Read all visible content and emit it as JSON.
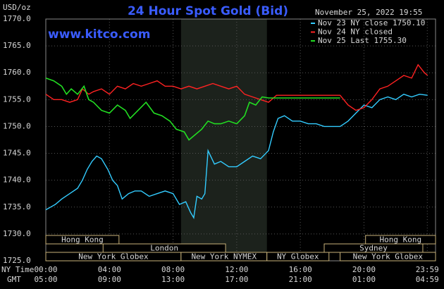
{
  "chart_data": {
    "type": "line",
    "title": "24 Hour Spot Gold (Bid)",
    "watermark": "www.kitco.com",
    "y_unit": "USD/oz",
    "timestamp": "November 25, 2022 19:55",
    "xlabel_rows": [
      "NY Time",
      "GMT"
    ],
    "xlim": [
      0,
      24.5
    ],
    "xticks": [
      {
        "value": 0,
        "label": "00:00"
      },
      {
        "value": 4,
        "label": "04:00"
      },
      {
        "value": 8,
        "label": "08:00"
      },
      {
        "value": 12,
        "label": "12:00"
      },
      {
        "value": 16,
        "label": "16:00"
      },
      {
        "value": 20,
        "label": "20:00"
      },
      {
        "value": 23.98,
        "label": "23:59"
      }
    ],
    "xticks_gmt": [
      "05:00",
      "09:00",
      "13:00",
      "17:00",
      "21:00",
      "01:00",
      "04:59"
    ],
    "ylim": [
      1725,
      1770
    ],
    "yticks": [
      {
        "value": 1725,
        "label": "1725.0"
      },
      {
        "value": 1730,
        "label": "1730.0"
      },
      {
        "value": 1735,
        "label": "1735.0"
      },
      {
        "value": 1740,
        "label": "1740.0"
      },
      {
        "value": 1745,
        "label": "1745.0"
      },
      {
        "value": 1750,
        "label": "1750.0"
      },
      {
        "value": 1755,
        "label": "1755.0"
      },
      {
        "value": 1760,
        "label": "1760.0"
      },
      {
        "value": 1765,
        "label": "1765.0"
      },
      {
        "value": 1770,
        "label": "1770.0"
      }
    ],
    "grid": true,
    "highlight": [
      8.5,
      13.9
    ],
    "sessions": [
      {
        "label": "Hong Kong",
        "start": 0,
        "end": 4.6,
        "row": 0
      },
      {
        "label": "London",
        "start": 3.6,
        "end": 11.3,
        "row": 1
      },
      {
        "label": "New York Globex",
        "start": 0,
        "end": 8.5,
        "row": 2
      },
      {
        "label": "New York NYMEX",
        "start": 8.5,
        "end": 13.9,
        "row": 2
      },
      {
        "label": "NY Globex",
        "start": 13.9,
        "end": 17.8,
        "row": 2
      },
      {
        "label": "Sydney",
        "start": 17.5,
        "end": 23.7,
        "row": 1
      },
      {
        "label": "Hong Kong",
        "start": 20.1,
        "end": 24.5,
        "row": 0
      },
      {
        "label": "New York Globex",
        "start": 18.5,
        "end": 24.5,
        "row": 2
      }
    ],
    "series": [
      {
        "name": "Nov 23 NY close 1750.10",
        "color": "#33ccff",
        "x": [
          0,
          0.3,
          0.6,
          1,
          1.5,
          2,
          2.3,
          2.6,
          2.9,
          3.2,
          3.5,
          3.9,
          4.2,
          4.5,
          4.8,
          5.2,
          5.6,
          6,
          6.5,
          7,
          7.5,
          8,
          8.4,
          8.8,
          9.1,
          9.3,
          9.5,
          9.8,
          10,
          10.2,
          10.6,
          11,
          11.5,
          12,
          12.5,
          13,
          13.5,
          14,
          14.3,
          14.6,
          15,
          15.5,
          16,
          16.5,
          17,
          17.5,
          18.5,
          19,
          19.5,
          20,
          20.5,
          21,
          21.5,
          22,
          22.5,
          23,
          23.5,
          24
        ],
        "values": [
          1734.5,
          1735,
          1735.5,
          1736.5,
          1737.5,
          1738.5,
          1740,
          1742,
          1743.5,
          1744.5,
          1744,
          1742,
          1740,
          1739,
          1736.5,
          1737.5,
          1738,
          1738,
          1737,
          1737.5,
          1738,
          1737.5,
          1735.5,
          1736,
          1734,
          1733,
          1737,
          1736.5,
          1737.5,
          1745.5,
          1743,
          1743.5,
          1742.5,
          1742.5,
          1743.5,
          1744.5,
          1744,
          1745.5,
          1749,
          1751.5,
          1752,
          1751,
          1751,
          1750.5,
          1750.5,
          1750,
          1750,
          1751,
          1752.5,
          1754,
          1753.5,
          1755,
          1755.5,
          1755,
          1756,
          1755.5,
          1756,
          1755.8
        ]
      },
      {
        "name": "Nov 24 NY closed",
        "color": "#ff2222",
        "x": [
          0,
          0.5,
          1,
          1.5,
          2,
          2.3,
          2.7,
          3,
          3.5,
          4,
          4.5,
          5,
          5.5,
          6,
          6.5,
          7,
          7.5,
          8,
          8.5,
          9,
          9.5,
          10,
          10.5,
          11,
          11.5,
          12,
          12.5,
          13,
          13.5,
          14,
          14.5,
          18.5,
          19,
          19.5,
          20,
          20.5,
          21,
          21.5,
          22,
          22.5,
          23,
          23.4,
          23.8,
          24
        ],
        "values": [
          1756,
          1755,
          1755,
          1754.5,
          1755,
          1757,
          1756,
          1756.5,
          1757,
          1756,
          1757.5,
          1757,
          1758,
          1757.5,
          1758,
          1758.5,
          1757.5,
          1757.5,
          1757,
          1757.5,
          1757,
          1757.5,
          1758,
          1757.5,
          1757,
          1757.5,
          1756,
          1755.5,
          1755,
          1754.5,
          1755.8,
          1755.8,
          1754,
          1753,
          1753.5,
          1755,
          1757,
          1757.5,
          1758.5,
          1759.5,
          1759,
          1761.5,
          1760,
          1759.5
        ]
      },
      {
        "name": "Nov 25 Last 1755.30",
        "color": "#22dd22",
        "x": [
          0,
          0.5,
          1,
          1.3,
          1.6,
          2,
          2.4,
          2.7,
          3,
          3.5,
          4,
          4.5,
          5,
          5.3,
          5.8,
          6.3,
          6.8,
          7.3,
          7.8,
          8.2,
          8.7,
          9,
          9.4,
          9.8,
          10.2,
          10.6,
          11,
          11.5,
          12,
          12.5,
          12.8,
          13.2,
          13.6,
          14,
          18.5
        ],
        "values": [
          1759,
          1758.5,
          1757.5,
          1756,
          1757,
          1756,
          1757.5,
          1755,
          1754.5,
          1753,
          1752.5,
          1754,
          1753,
          1751.5,
          1753,
          1754.5,
          1752.5,
          1752,
          1751,
          1749.5,
          1749,
          1747.5,
          1748.5,
          1749.5,
          1751,
          1750.5,
          1750.5,
          1751,
          1750.5,
          1752,
          1754.5,
          1754,
          1755.5,
          1755.3,
          1755.3
        ]
      }
    ]
  }
}
